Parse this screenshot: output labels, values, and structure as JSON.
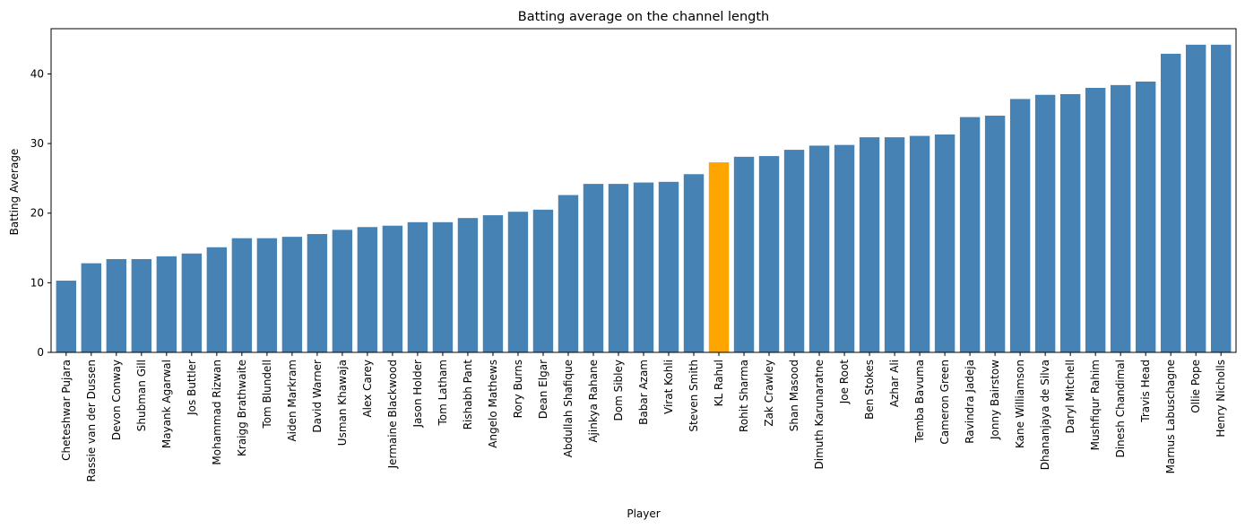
{
  "chart_data": {
    "type": "bar",
    "title": "Batting average on the channel length",
    "xlabel": "Player",
    "ylabel": "Batting Average",
    "ylim": [
      0,
      46.5
    ],
    "yticks": [
      0,
      10,
      20,
      30,
      40
    ],
    "grid": false,
    "legend": "none",
    "bar_color": "#4682b4",
    "highlight_color": "#ffa500",
    "highlight_category": "KL Rahul",
    "categories": [
      "Cheteshwar Pujara",
      "Rassie van der Dussen",
      "Devon Conway",
      "Shubman Gill",
      "Mayank Agarwal",
      "Jos Buttler",
      "Mohammad Rizwan",
      "Kraigg Brathwaite",
      "Tom Blundell",
      "Aiden Markram",
      "David Warner",
      "Usman Khawaja",
      "Alex Carey",
      "Jermaine Blackwood",
      "Jason Holder",
      "Tom Latham",
      "Rishabh Pant",
      "Angelo Mathews",
      "Rory Burns",
      "Dean Elgar",
      "Abdullah Shafique",
      "Ajinkya Rahane",
      "Dom Sibley",
      "Babar Azam",
      "Virat Kohli",
      "Steven Smith",
      "KL Rahul",
      "Rohit Sharma",
      "Zak Crawley",
      "Shan Masood",
      "Dimuth Karunaratne",
      "Joe Root",
      "Ben Stokes",
      "Azhar Ali",
      "Temba Bavuma",
      "Cameron Green",
      "Ravindra Jadeja",
      "Jonny Bairstow",
      "Kane Williamson",
      "Dhananjaya de Silva",
      "Daryl Mitchell",
      "Mushfiqur Rahim",
      "Dinesh Chandimal",
      "Travis Head",
      "Marnus Labuschagne",
      "Ollie Pope",
      "Henry Nicholls"
    ],
    "values": [
      10.3,
      12.8,
      13.4,
      13.4,
      13.8,
      14.2,
      15.1,
      16.4,
      16.4,
      16.6,
      17.0,
      17.6,
      18.0,
      18.2,
      18.7,
      18.7,
      19.3,
      19.7,
      20.2,
      20.5,
      22.6,
      24.2,
      24.2,
      24.4,
      24.5,
      25.6,
      27.3,
      28.1,
      28.2,
      29.1,
      29.7,
      29.8,
      30.9,
      30.9,
      31.1,
      31.3,
      33.8,
      34.0,
      36.4,
      37.0,
      37.1,
      38.0,
      38.4,
      38.9,
      42.9,
      44.2,
      44.2
    ]
  }
}
